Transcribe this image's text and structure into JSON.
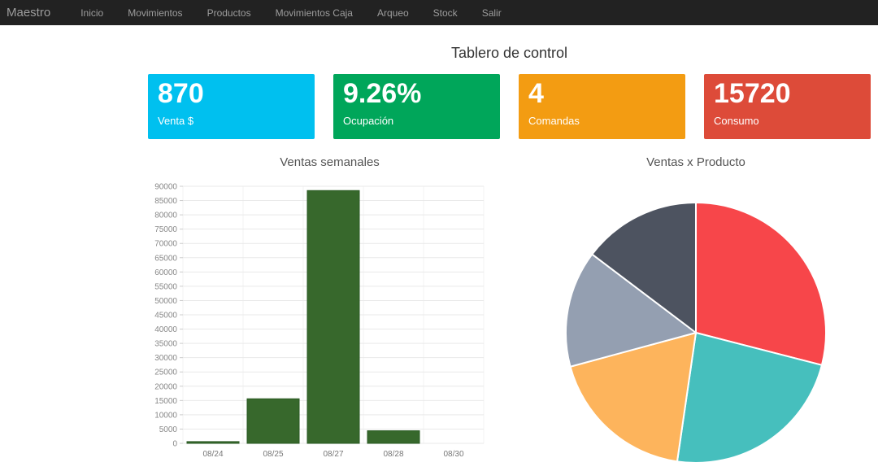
{
  "navbar": {
    "brand": "Maestro",
    "items": [
      {
        "label": "Inicio"
      },
      {
        "label": "Movimientos"
      },
      {
        "label": "Productos"
      },
      {
        "label": "Movimientos Caja"
      },
      {
        "label": "Arqueo"
      },
      {
        "label": "Stock"
      },
      {
        "label": "Salir"
      }
    ]
  },
  "page": {
    "title": "Tablero de control"
  },
  "cards": [
    {
      "value": "870",
      "label": "Venta $",
      "color": "#00c0ef"
    },
    {
      "value": "9.26%",
      "label": "Ocupación",
      "color": "#00a65a"
    },
    {
      "value": "4",
      "label": "Comandas",
      "color": "#f39c12"
    },
    {
      "value": "15720",
      "label": "Consumo",
      "color": "#dd4b39"
    }
  ],
  "chart_data": [
    {
      "type": "bar",
      "title": "Ventas semanales",
      "categories": [
        "08/24",
        "08/25",
        "08/27",
        "08/28",
        "08/30"
      ],
      "values": [
        600,
        15600,
        88500,
        4400,
        0
      ],
      "xlabel": "",
      "ylabel": "",
      "ylim": [
        0,
        90000
      ],
      "ytick_step": 5000,
      "grid": true,
      "legend": "none",
      "bar_color": "#37682c",
      "bar_border_color": "#2a5a23",
      "axis_label_color": "#888888",
      "grid_color": "#e9e9e9"
    },
    {
      "type": "pie",
      "title": "Ventas x Producto",
      "slices": [
        {
          "percent": 29.0,
          "color": "#F7464A"
        },
        {
          "percent": 23.3,
          "color": "#46BFBD"
        },
        {
          "percent": 18.5,
          "color": "#FDB45C"
        },
        {
          "percent": 14.5,
          "color": "#949FB1"
        },
        {
          "percent": 14.7,
          "color": "#4D5360"
        }
      ],
      "legend": "none",
      "slice_border_color": "#ffffff"
    }
  ]
}
